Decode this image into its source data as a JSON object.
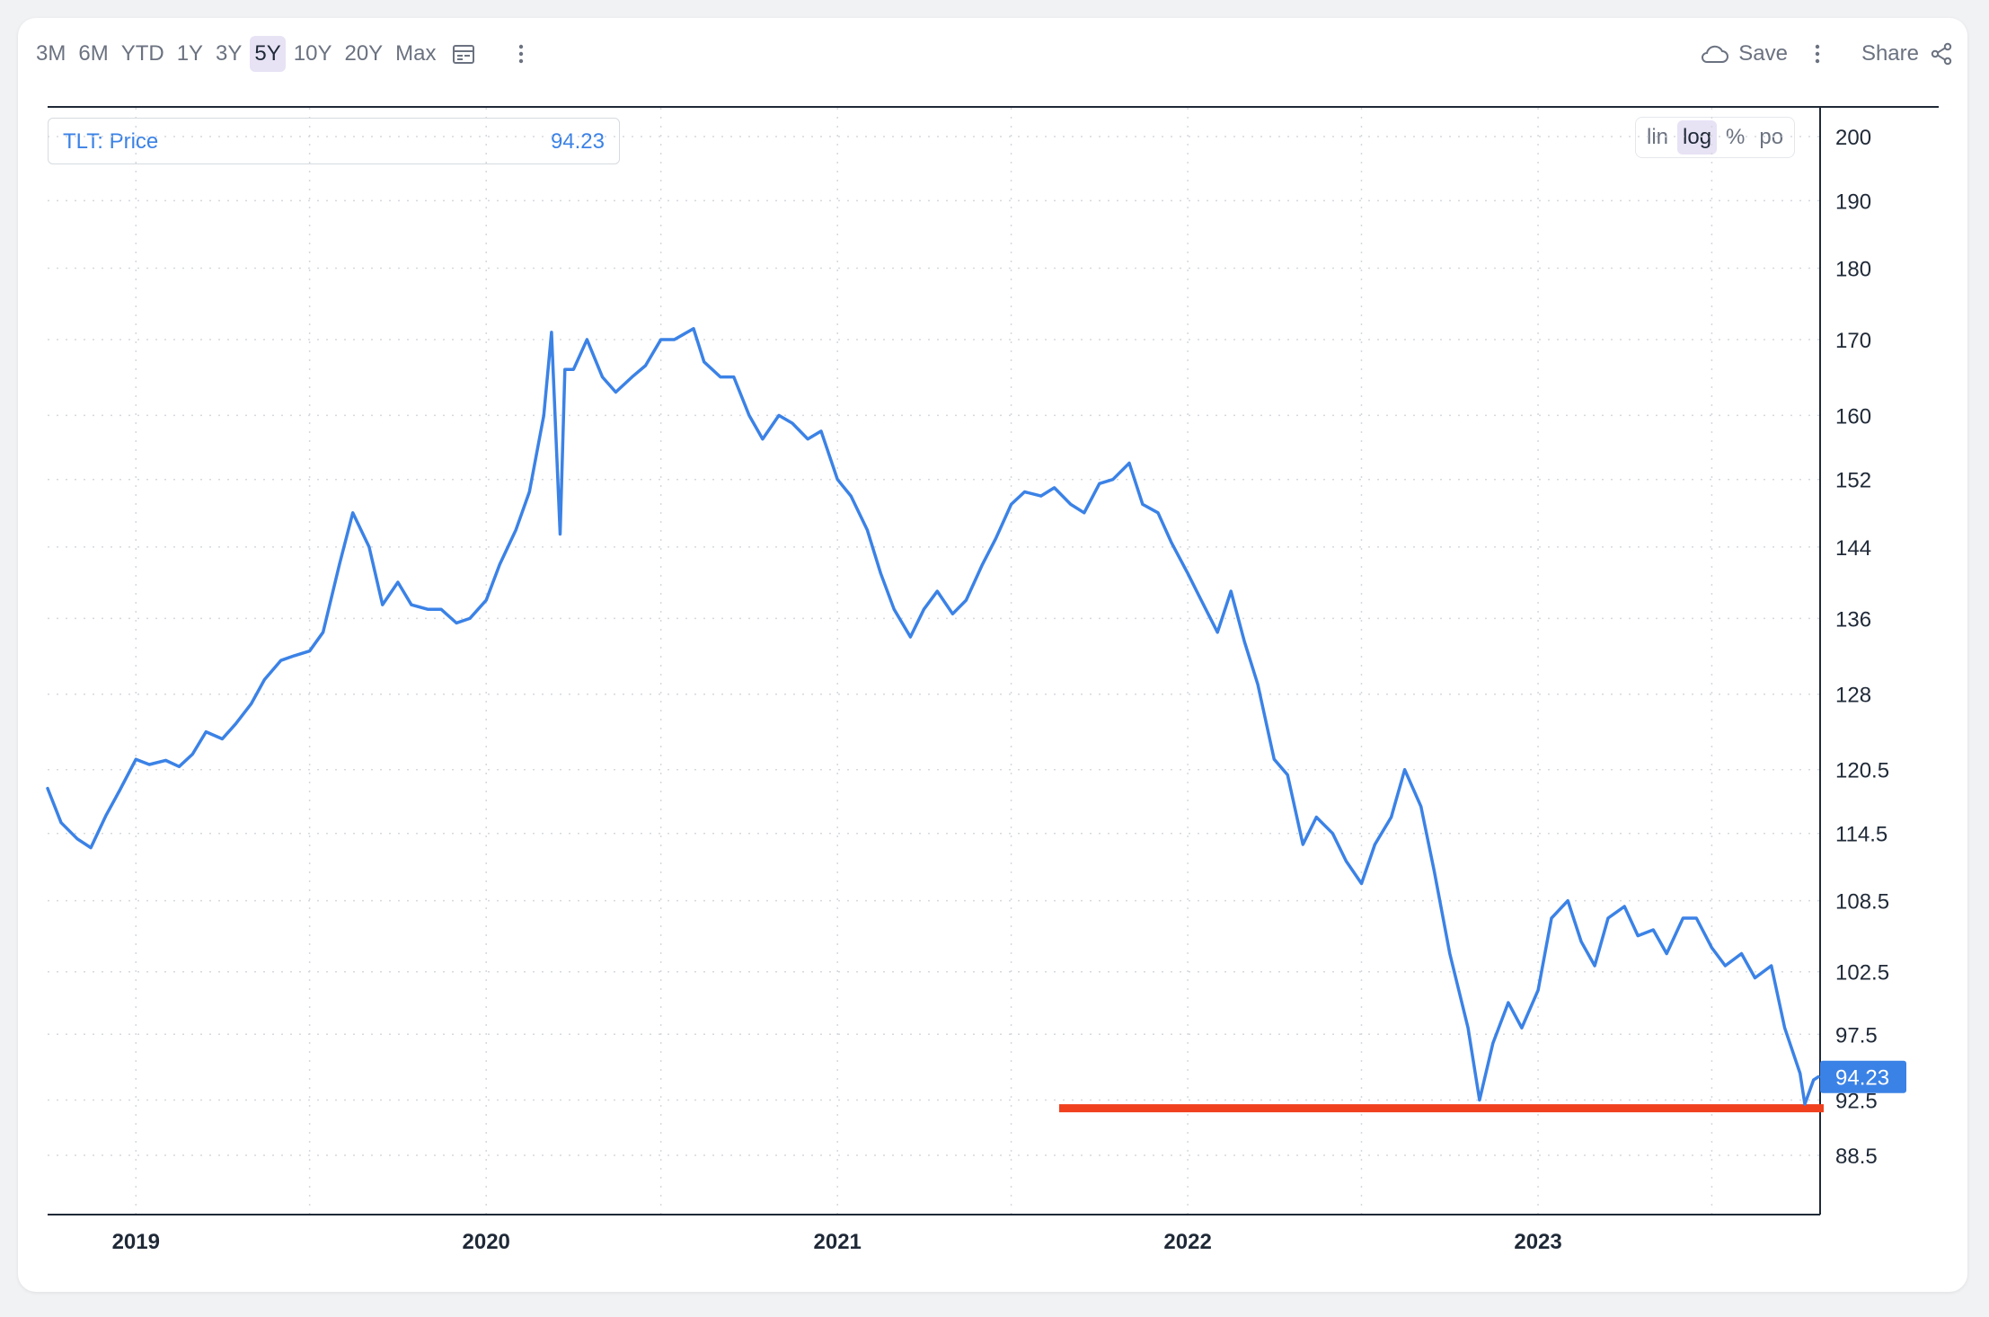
{
  "toolbar": {
    "ranges": [
      "3M",
      "6M",
      "YTD",
      "1Y",
      "3Y",
      "5Y",
      "10Y",
      "20Y",
      "Max"
    ],
    "active_range": "5Y",
    "save_label": "Save",
    "share_label": "Share",
    "icons": [
      "calendar-icon",
      "more-vertical-icon",
      "cloud-icon",
      "share-icon"
    ]
  },
  "scale_modes": [
    "lin",
    "log",
    "%",
    "po"
  ],
  "active_scale": "log",
  "legend": {
    "name": "TLT: Price",
    "value": "94.23"
  },
  "colors": {
    "line": "#3b82e6",
    "support_line": "#f0401e",
    "badge": "#3b82e6",
    "grid": "#d5d9de"
  },
  "chart_data": {
    "type": "line",
    "series": [
      {
        "name": "TLT: Price",
        "x": [
          "2018-10-01",
          "2018-10-15",
          "2018-11-01",
          "2018-11-15",
          "2018-12-01",
          "2018-12-15",
          "2019-01-01",
          "2019-01-15",
          "2019-02-01",
          "2019-02-15",
          "2019-03-01",
          "2019-03-15",
          "2019-04-01",
          "2019-04-15",
          "2019-05-01",
          "2019-05-15",
          "2019-06-01",
          "2019-06-15",
          "2019-07-01",
          "2019-07-15",
          "2019-08-01",
          "2019-08-15",
          "2019-09-01",
          "2019-09-15",
          "2019-10-01",
          "2019-10-15",
          "2019-11-01",
          "2019-11-15",
          "2019-12-01",
          "2019-12-15",
          "2020-01-01",
          "2020-01-15",
          "2020-02-01",
          "2020-02-15",
          "2020-03-01",
          "2020-03-09",
          "2020-03-18",
          "2020-03-23",
          "2020-04-01",
          "2020-04-15",
          "2020-05-01",
          "2020-05-15",
          "2020-06-01",
          "2020-06-15",
          "2020-07-01",
          "2020-07-15",
          "2020-08-04",
          "2020-08-15",
          "2020-09-01",
          "2020-09-15",
          "2020-10-01",
          "2020-10-15",
          "2020-11-01",
          "2020-11-15",
          "2020-12-01",
          "2020-12-15",
          "2021-01-01",
          "2021-01-15",
          "2021-02-01",
          "2021-02-15",
          "2021-03-01",
          "2021-03-18",
          "2021-04-01",
          "2021-04-15",
          "2021-05-01",
          "2021-05-15",
          "2021-06-01",
          "2021-06-15",
          "2021-07-01",
          "2021-07-15",
          "2021-08-01",
          "2021-08-15",
          "2021-09-01",
          "2021-09-15",
          "2021-10-01",
          "2021-10-15",
          "2021-11-01",
          "2021-11-15",
          "2021-12-01",
          "2021-12-15",
          "2022-01-01",
          "2022-01-15",
          "2022-02-01",
          "2022-02-15",
          "2022-03-01",
          "2022-03-15",
          "2022-04-01",
          "2022-04-15",
          "2022-05-01",
          "2022-05-15",
          "2022-06-01",
          "2022-06-15",
          "2022-07-01",
          "2022-07-15",
          "2022-08-01",
          "2022-08-15",
          "2022-09-01",
          "2022-09-15",
          "2022-10-01",
          "2022-10-20",
          "2022-11-01",
          "2022-11-15",
          "2022-12-01",
          "2022-12-15",
          "2023-01-01",
          "2023-01-15",
          "2023-02-01",
          "2023-02-15",
          "2023-03-01",
          "2023-03-15",
          "2023-04-01",
          "2023-04-15",
          "2023-05-01",
          "2023-05-15",
          "2023-06-01",
          "2023-06-15",
          "2023-07-01",
          "2023-07-15",
          "2023-08-01",
          "2023-08-15",
          "2023-09-01",
          "2023-09-15",
          "2023-10-01",
          "2023-10-06",
          "2023-10-15",
          "2023-10-20"
        ],
        "y": [
          118.7,
          115.5,
          114,
          113.2,
          116.2,
          118.5,
          121.5,
          121,
          121.4,
          120.8,
          122,
          124.2,
          123.5,
          125,
          127,
          129.5,
          131.5,
          132,
          132.5,
          134.5,
          142,
          148,
          144,
          137.5,
          140,
          137.5,
          137,
          137,
          135.5,
          136,
          138,
          142,
          146,
          150.5,
          160,
          171,
          145.5,
          166,
          166,
          170,
          165,
          163,
          165,
          166.5,
          170,
          170,
          171.5,
          167,
          165,
          165,
          160,
          157,
          160,
          159,
          157,
          158,
          152,
          150,
          146,
          141,
          137,
          134,
          137,
          139,
          136.5,
          138,
          142,
          145,
          149,
          150.5,
          150,
          151,
          149,
          148,
          151.5,
          152,
          154,
          149,
          148,
          144.5,
          141,
          138,
          134.5,
          139,
          133.5,
          129,
          121.5,
          120,
          113.5,
          116,
          114.5,
          112,
          110,
          113.5,
          116,
          120.5,
          117,
          111,
          104,
          98,
          92.5,
          96.8,
          100,
          98,
          101,
          107,
          108.5,
          105,
          103,
          107,
          108,
          105.5,
          106,
          104,
          107,
          107,
          104.5,
          103,
          104,
          102,
          103,
          98,
          94.5,
          92.2,
          94,
          94.23
        ]
      }
    ],
    "y_scale": "log",
    "ylim": [
      84.8,
      204
    ],
    "y_ticks": [
      "200",
      "190",
      "180",
      "170",
      "160",
      "152",
      "144",
      "136",
      "128",
      "120.5",
      "114.5",
      "108.5",
      "102.5",
      "97.5",
      "92.5",
      "88.5"
    ],
    "x_ticks": [
      "2019",
      "2020",
      "2021",
      "2022",
      "2023"
    ],
    "last_value_label": "94.23",
    "annotations": [
      {
        "type": "horizontal-line",
        "y": 91.9,
        "x_start": "2021-08-20",
        "x_end": "2023-10-20",
        "color": "#f0401e"
      }
    ],
    "grid": true
  }
}
